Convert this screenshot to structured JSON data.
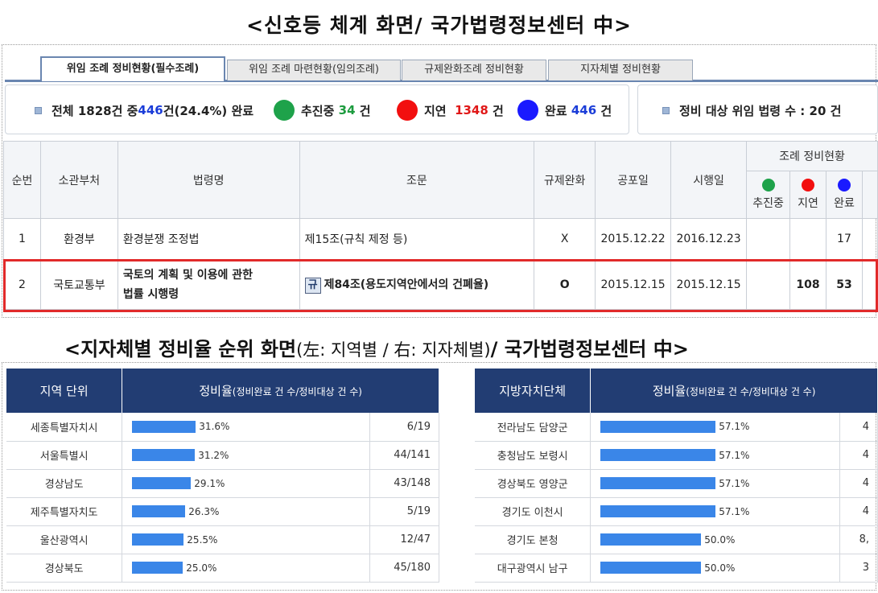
{
  "headings": {
    "top": "<신호등 체계 화면/ 국가법령정보센터 中>",
    "bottom_main": "<지자체별 정비율 순위 화면",
    "bottom_paren": "(左: 지역별 / 右: 지자체별)",
    "bottom_tail": "/ 국가법령정보센터 中>"
  },
  "tabs": [
    "위임 조례 정비현황(필수조례)",
    "위임 조례 마련현황(임의조례)",
    "규제완화조례 정비현황",
    "지자체별 정비현황"
  ],
  "summary": {
    "total_prefix": "전체 1828건 중 ",
    "total_done": "446",
    "total_suffix": "건(24.4%) 완료",
    "in_progress_label": "추진중",
    "in_progress_count": "34",
    "delayed_label": "지연",
    "delayed_count": "1348",
    "done_label": "완료",
    "done_count": "446",
    "unit": "건",
    "target_label": "정비 대상 위임 법령 수 : 20 건"
  },
  "main_table": {
    "headers": {
      "no": "순번",
      "dept": "소관부처",
      "law": "법령명",
      "article": "조문",
      "dereg": "규제완화",
      "promulgation": "공포일",
      "enforcement": "시행일",
      "status_group": "조례 정비현황",
      "in_progress": "추진중",
      "delayed": "지연",
      "done": "완료"
    },
    "rows": [
      {
        "no": "1",
        "dept": "환경부",
        "law": "환경분쟁 조정법",
        "article": "제15조(규칙 제정 등)",
        "dereg": "X",
        "promulgation": "2015.12.22",
        "enforcement": "2016.12.23",
        "in_progress": "",
        "delayed": "",
        "done": "17"
      },
      {
        "no": "2",
        "dept": "국토교통부",
        "law_line1": "국토의 계획 및 이용에 관한",
        "law_line2": "법률 시행령",
        "badge": "규",
        "article": "제84조(용도지역안에서의 건폐율)",
        "dereg": "O",
        "promulgation": "2015.12.15",
        "enforcement": "2015.12.15",
        "in_progress": "",
        "delayed": "108",
        "done": "53"
      }
    ]
  },
  "region_table": {
    "col1": "지역 단위",
    "col2_main": "정비율",
    "col2_sub": "(정비완료 건 수/정비대상 건 수)",
    "rows": [
      {
        "name": "세종특별자치시",
        "rate": 31.6,
        "rate_label": "31.6%",
        "count": "6/19"
      },
      {
        "name": "서울특별시",
        "rate": 31.2,
        "rate_label": "31.2%",
        "count": "44/141"
      },
      {
        "name": "경상남도",
        "rate": 29.1,
        "rate_label": "29.1%",
        "count": "43/148"
      },
      {
        "name": "제주특별자치도",
        "rate": 26.3,
        "rate_label": "26.3%",
        "count": "5/19"
      },
      {
        "name": "울산광역시",
        "rate": 25.5,
        "rate_label": "25.5%",
        "count": "12/47"
      },
      {
        "name": "경상북도",
        "rate": 25.0,
        "rate_label": "25.0%",
        "count": "45/180"
      }
    ]
  },
  "local_table": {
    "col1": "지방자치단체",
    "col2_main": "정비율",
    "col2_sub": "(정비완료 건 수/정비대상 건 수)",
    "rows": [
      {
        "name": "전라남도 담양군",
        "rate": 57.1,
        "rate_label": "57.1%",
        "count": "4"
      },
      {
        "name": "충청남도 보령시",
        "rate": 57.1,
        "rate_label": "57.1%",
        "count": "4"
      },
      {
        "name": "경상북도 영양군",
        "rate": 57.1,
        "rate_label": "57.1%",
        "count": "4"
      },
      {
        "name": "경기도 이천시",
        "rate": 57.1,
        "rate_label": "57.1%",
        "count": "4"
      },
      {
        "name": "경기도 본청",
        "rate": 50.0,
        "rate_label": "50.0%",
        "count": "8,"
      },
      {
        "name": "대구광역시 남구",
        "rate": 50.0,
        "rate_label": "50.0%",
        "count": "3"
      }
    ]
  },
  "colors": {
    "in_progress": "#1ea24a",
    "delayed": "#f20f0f",
    "done": "#1a1aff",
    "header_navy": "#223d73",
    "bar_blue": "#3a86e8",
    "highlight_red": "#e12a2a"
  }
}
